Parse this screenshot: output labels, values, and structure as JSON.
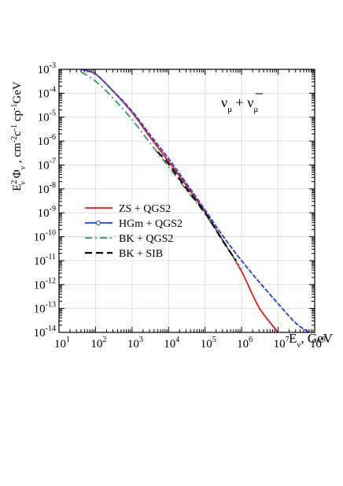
{
  "chart_data": {
    "type": "line",
    "x_scale": "log",
    "y_scale": "log",
    "xlim": [
      10,
      100000000
    ],
    "ylim": [
      1e-14,
      0.001
    ],
    "grid": true,
    "xlabel": "E_ν, GeV",
    "ylabel": "E_ν² Φ_ν , cm⁻² c⁻¹ cp⁻¹GeV",
    "annotation": "ν_μ + ν̄_μ",
    "legend_position": "left-middle",
    "x_ticks": [
      {
        "base": "10",
        "exp": "1"
      },
      {
        "base": "10",
        "exp": "2"
      },
      {
        "base": "10",
        "exp": "3"
      },
      {
        "base": "10",
        "exp": "4"
      },
      {
        "base": "10",
        "exp": "5"
      },
      {
        "base": "10",
        "exp": "6"
      },
      {
        "base": "10",
        "exp": "7"
      },
      {
        "base": "10",
        "exp": "8"
      }
    ],
    "y_ticks": [
      {
        "base": "10",
        "exp": "-3"
      },
      {
        "base": "10",
        "exp": "-4"
      },
      {
        "base": "10",
        "exp": "-5"
      },
      {
        "base": "10",
        "exp": "-6"
      },
      {
        "base": "10",
        "exp": "-7"
      },
      {
        "base": "10",
        "exp": "-8"
      },
      {
        "base": "10",
        "exp": "-9"
      },
      {
        "base": "10",
        "exp": "-10"
      },
      {
        "base": "10",
        "exp": "-11"
      },
      {
        "base": "10",
        "exp": "-12"
      },
      {
        "base": "10",
        "exp": "-13"
      },
      {
        "base": "10",
        "exp": "-14"
      }
    ],
    "series": [
      {
        "name": "ZS + QGS2",
        "color": "#e8191c",
        "style": "solid",
        "x": [
          40,
          100,
          300,
          1000,
          3000,
          10000,
          30000,
          100000,
          300000,
          1000000,
          3000000,
          10000000
        ],
        "y": [
          0.001,
          0.00063,
          0.000123,
          1.58e-05,
          1.58e-06,
          1.41e-07,
          1.45e-08,
          1.07e-09,
          7.4e-11,
          3.5e-12,
          1.1e-13,
          1e-14
        ]
      },
      {
        "name": "HGm + QGS2",
        "color": "#1a3de6",
        "style": "solid-markers",
        "x": [
          40,
          100,
          300,
          1000,
          3000,
          10000,
          30000,
          100000,
          300000,
          1000000,
          3000000,
          10000000,
          30000000,
          70000000
        ],
        "y": [
          0.001,
          0.00063,
          0.000126,
          1.78e-05,
          1.95e-06,
          1.86e-07,
          1.8e-08,
          1.32e-09,
          1.12e-10,
          1e-11,
          1.3e-12,
          1.58e-13,
          2.5e-14,
          1e-14
        ]
      },
      {
        "name": "BK + QGS2",
        "color": "#2a9d62",
        "style": "dashdot",
        "x": [
          40,
          100,
          300,
          1000,
          3000,
          10000,
          30000,
          100000,
          300000,
          1000000
        ],
        "y": [
          0.00079,
          0.000316,
          6.3e-05,
          7.9e-06,
          8.9e-07,
          8.3e-08,
          9.5e-09,
          8.9e-10,
          7.1e-11,
          4.5e-12
        ]
      },
      {
        "name": "BK + SIB",
        "color": "#000000",
        "style": "dashed",
        "x": [
          5000,
          10000,
          30000,
          100000,
          300000,
          700000
        ],
        "y": [
          3.5e-07,
          1.12e-07,
          1.1e-08,
          1e-09,
          7e-11,
          1e-11
        ]
      }
    ]
  }
}
